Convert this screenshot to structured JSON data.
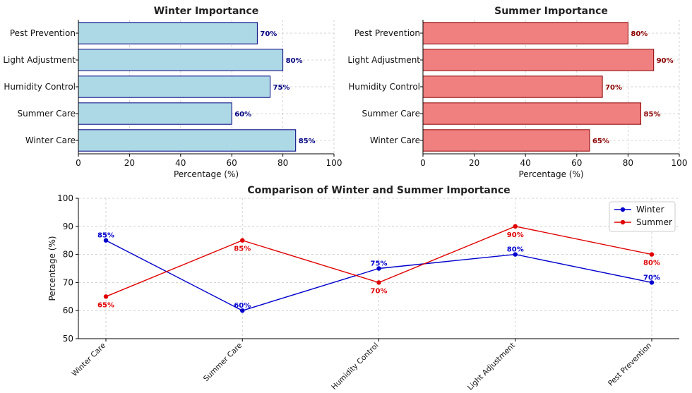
{
  "chart_data": [
    {
      "id": "winter",
      "type": "bar",
      "orientation": "horizontal",
      "title": "Winter Importance",
      "xlabel": "Percentage (%)",
      "ylabel": "",
      "xlim": [
        0,
        100
      ],
      "xticks": [
        "0",
        "20",
        "40",
        "60",
        "80",
        "100"
      ],
      "categories": [
        "Winter Care",
        "Summer Care",
        "Humidity Control",
        "Light Adjustment",
        "Pest Prevention"
      ],
      "values": [
        85,
        60,
        75,
        80,
        70
      ],
      "labels": [
        "85%",
        "60%",
        "75%",
        "80%",
        "70%"
      ],
      "bar_color": "#add8e6",
      "edge_color": "#000080",
      "label_color": "#000080"
    },
    {
      "id": "summer",
      "type": "bar",
      "orientation": "horizontal",
      "title": "Summer Importance",
      "xlabel": "Percentage (%)",
      "ylabel": "",
      "xlim": [
        0,
        100
      ],
      "xticks": [
        "0",
        "20",
        "40",
        "60",
        "80",
        "100"
      ],
      "categories": [
        "Winter Care",
        "Summer Care",
        "Humidity Control",
        "Light Adjustment",
        "Pest Prevention"
      ],
      "values": [
        65,
        85,
        70,
        90,
        80
      ],
      "labels": [
        "65%",
        "85%",
        "70%",
        "90%",
        "80%"
      ],
      "bar_color": "#f08080",
      "edge_color": "#8b0000",
      "label_color": "#8b0000"
    },
    {
      "id": "comparison",
      "type": "line",
      "title": "Comparison of Winter and Summer Importance",
      "xlabel": "",
      "ylabel": "Percentage (%)",
      "ylim": [
        50,
        100
      ],
      "yticks": [
        "50",
        "60",
        "70",
        "80",
        "90",
        "100"
      ],
      "categories": [
        "Winter Care",
        "Summer Care",
        "Humidity Control",
        "Light Adjustment",
        "Pest Prevention"
      ],
      "legend_position": "top-right",
      "series": [
        {
          "name": "Winter",
          "values": [
            85,
            60,
            75,
            80,
            70
          ],
          "labels": [
            "85%",
            "60%",
            "75%",
            "80%",
            "70%"
          ],
          "color": "#0000cd"
        },
        {
          "name": "Summer",
          "values": [
            65,
            85,
            70,
            90,
            80
          ],
          "labels": [
            "65%",
            "85%",
            "70%",
            "90%",
            "80%"
          ],
          "color": "#e00000"
        }
      ]
    }
  ]
}
